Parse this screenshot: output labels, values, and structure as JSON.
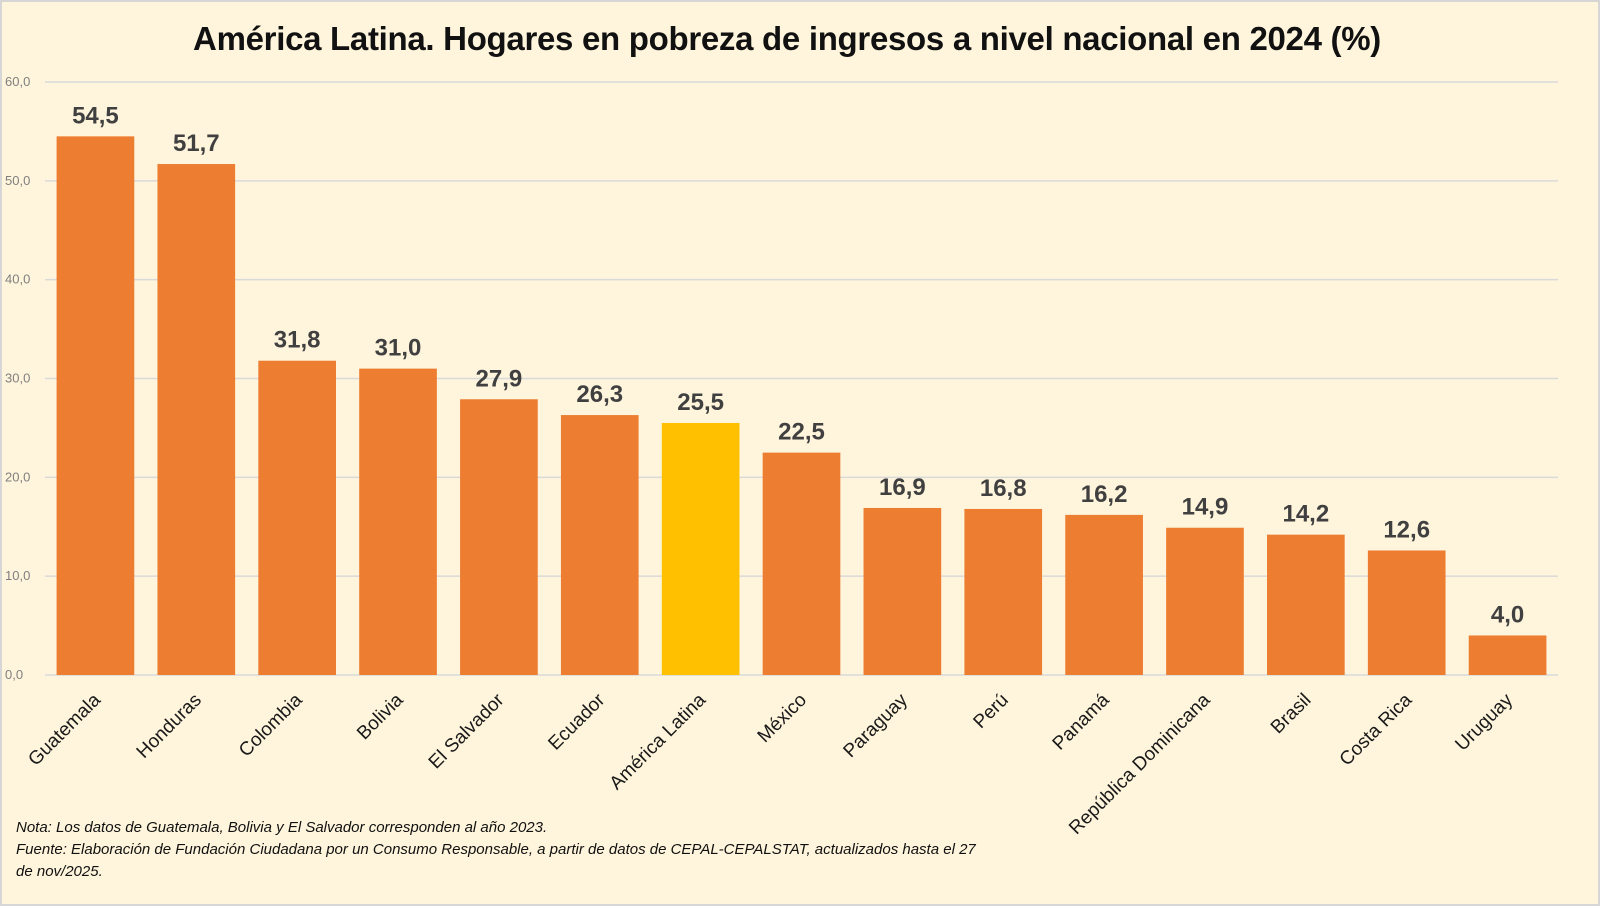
{
  "colors": {
    "background": "#fff5dc",
    "bar": "#ed7d31",
    "highlight_bar": "#ffc000",
    "gridline": "#d9d9d9",
    "data_label": "#404040"
  },
  "chart_data": {
    "type": "bar",
    "title": "América Latina. Hogares en pobreza de ingresos a nivel nacional en 2024 (%)",
    "xlabel": "",
    "ylabel": "",
    "ylim": [
      0,
      60
    ],
    "yticks": [
      "0,0",
      "10,0",
      "20,0",
      "30,0",
      "40,0",
      "50,0",
      "60,0"
    ],
    "ytick_values": [
      0,
      10,
      20,
      30,
      40,
      50,
      60
    ],
    "grid": true,
    "legend": "none",
    "categories": [
      "Guatemala",
      "Honduras",
      "Colombia",
      "Bolivia",
      "El Salvador",
      "Ecuador",
      "América Latina",
      "México",
      "Paraguay",
      "Perú",
      "Panamá",
      "República Dominicana",
      "Brasil",
      "Costa Rica",
      "Uruguay"
    ],
    "values": [
      54.5,
      51.7,
      31.8,
      31.0,
      27.9,
      26.3,
      25.5,
      22.5,
      16.9,
      16.8,
      16.2,
      14.9,
      14.2,
      12.6,
      4.0
    ],
    "data_labels": [
      "54,5",
      "51,7",
      "31,8",
      "31,0",
      "27,9",
      "26,3",
      "25,5",
      "22,5",
      "16,9",
      "16,8",
      "16,2",
      "14,9",
      "14,2",
      "12,6",
      "4,0"
    ],
    "highlight": "América Latina"
  },
  "notes": {
    "nota": "Nota: Los datos de Guatemala, Bolivia y El Salvador corresponden al año 2023.",
    "fuente": "Fuente: Elaboración de Fundación Ciudadana por un Consumo Responsable, a partir de datos de CEPAL-CEPALSTAT, actualizados hasta el 27 de nov/2025."
  }
}
